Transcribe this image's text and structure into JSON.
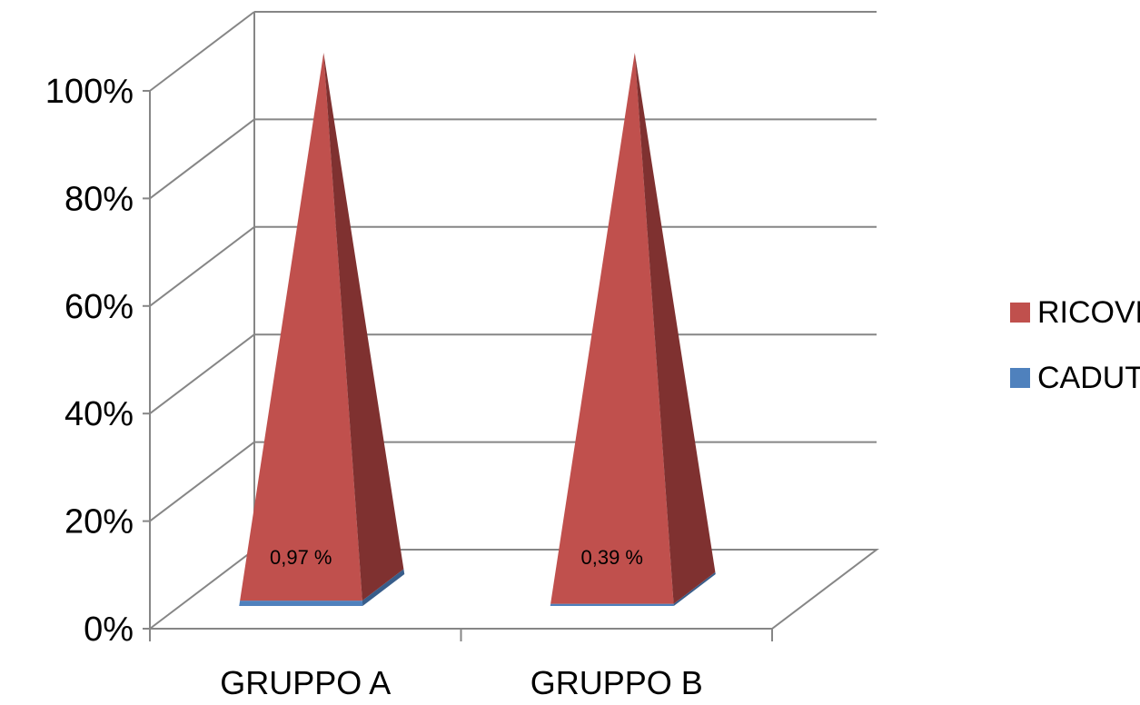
{
  "chart_data": {
    "type": "bar",
    "subtype": "3d-stacked-100-pyramid",
    "categories": [
      "GRUPPO A",
      "GRUPPO B"
    ],
    "series": [
      {
        "name": "CADUTE",
        "values": [
          0.97,
          0.39
        ],
        "color": "#4f81bd",
        "side_color": "#385d8a"
      },
      {
        "name": "RICOVERI",
        "values": [
          99.03,
          99.61
        ],
        "color": "#c0504d",
        "side_color": "#7f3130"
      }
    ],
    "data_labels": [
      "0,97 %",
      "0,39 %"
    ],
    "y_ticks": [
      "0%",
      "20%",
      "40%",
      "60%",
      "80%",
      "100%"
    ],
    "ylim": [
      0,
      100
    ],
    "grid": true,
    "legend": {
      "position": "right",
      "entries": [
        "RICOVERI",
        "CADUTE"
      ]
    }
  }
}
